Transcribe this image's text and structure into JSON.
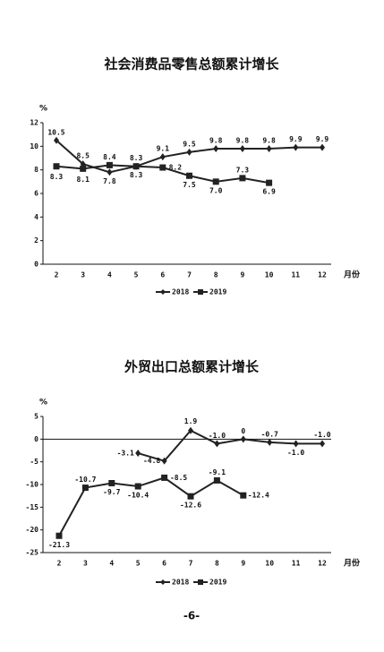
{
  "chart_data": [
    {
      "type": "line",
      "title": "社会消费品零售总额累计增长",
      "y_label": "%",
      "x_label": "月份",
      "categories": [
        "2",
        "3",
        "4",
        "5",
        "6",
        "7",
        "8",
        "9",
        "10",
        "11",
        "12"
      ],
      "ylim": [
        0,
        12
      ],
      "yticks": [
        0,
        2,
        4,
        6,
        8,
        10,
        12
      ],
      "series": [
        {
          "name": "2018",
          "color": "#222222",
          "marker": "diamond",
          "values": [
            10.5,
            8.5,
            7.8,
            8.3,
            9.1,
            9.5,
            9.8,
            9.8,
            9.8,
            9.9,
            9.9
          ],
          "value_labels": [
            "10.5",
            "8.5",
            "7.8",
            "8.3",
            "9.1",
            "9.5",
            "9.8",
            "9.8",
            "9.8",
            "9.9",
            "9.9"
          ]
        },
        {
          "name": "2019",
          "color": "#222222",
          "marker": "square",
          "values": [
            8.3,
            8.1,
            8.4,
            8.3,
            8.2,
            7.5,
            7.0,
            7.3,
            6.9,
            null,
            null
          ],
          "value_labels": [
            "8.3",
            "8.1",
            "8.4",
            "8.3",
            "8.2",
            "7.5",
            "7.0",
            "7.3",
            "6.9",
            null,
            null
          ]
        }
      ]
    },
    {
      "type": "line",
      "title": "外贸出口总额累计增长",
      "y_label": "%",
      "x_label": "月份",
      "categories": [
        "2",
        "3",
        "4",
        "5",
        "6",
        "7",
        "8",
        "9",
        "10",
        "11",
        "12"
      ],
      "ylim": [
        -25,
        5
      ],
      "yticks": [
        -25,
        -20,
        -15,
        -10,
        -5,
        0,
        5
      ],
      "series": [
        {
          "name": "2018",
          "color": "#222222",
          "marker": "diamond",
          "values": [
            null,
            null,
            null,
            -3.1,
            -4.8,
            1.9,
            -1.0,
            0,
            -0.7,
            -1.0,
            -1.0
          ],
          "value_labels": [
            null,
            null,
            null,
            "-3.1",
            "-4.8",
            "1.9",
            "-1.0",
            "0",
            "-0.7",
            "-1.0",
            "-1.0"
          ]
        },
        {
          "name": "2019",
          "color": "#222222",
          "marker": "square",
          "values": [
            -21.3,
            -10.7,
            -9.7,
            -10.4,
            -8.5,
            -12.6,
            -9.1,
            -12.4,
            null,
            null,
            null
          ],
          "value_labels": [
            "-21.3",
            "-10.7",
            "-9.7",
            "-10.4",
            "-8.5",
            "-12.6",
            "-9.1",
            "-12.4",
            null,
            null,
            null
          ]
        }
      ]
    }
  ],
  "page_number": "-6-"
}
